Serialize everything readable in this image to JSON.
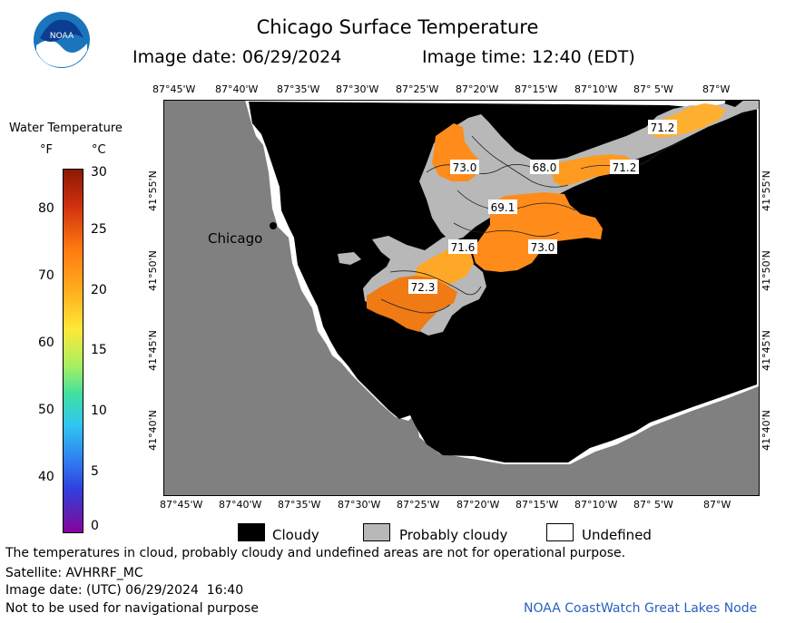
{
  "title": "Chicago Surface Temperature",
  "image_date_label": "Image date: 06/29/2024",
  "image_time_label": "Image time: 12:40 (EDT)",
  "logo_text": "NOAA",
  "colorbar": {
    "title": "Water Temperature",
    "unit_f": "°F",
    "unit_c": "°C",
    "f_ticks": [
      "80",
      "70",
      "60",
      "50",
      "40"
    ],
    "c_ticks": [
      "30",
      "25",
      "20",
      "15",
      "10",
      "5",
      "0"
    ]
  },
  "map": {
    "x_ticks": [
      "87°45'W",
      "87°40'W",
      "87°35'W",
      "87°30'W",
      "87°25'W",
      "87°20'W",
      "87°15'W",
      "87°10'W",
      "87° 5'W",
      "87°W"
    ],
    "y_ticks": [
      "41°55'N",
      "41°50'N",
      "41°45'N",
      "41°40'N"
    ],
    "city_label": "Chicago",
    "temp_labels": [
      "73.0",
      "68.0",
      "71.2",
      "71.2",
      "69.1",
      "71.6",
      "73.0",
      "72.3"
    ],
    "colors": {
      "land": "#808080",
      "cloud": "#000000",
      "probably_cloudy": "#b8b8b8",
      "warm": "#ff8c1a",
      "hot": "#f07010"
    }
  },
  "legend": {
    "cloudy": "Cloudy",
    "probably_cloudy": "Probably cloudy",
    "undefined": "Undefined"
  },
  "footer": {
    "note": "The temperatures in cloud, probably cloudy and undefined areas are not for operational purpose.",
    "satellite": "Satellite: AVHRRF_MC",
    "utc_date": "Image date: (UTC) 06/29/2024  16:40",
    "nav_warning": "Not to be used for navigational purpose",
    "credit": "NOAA CoastWatch Great Lakes Node"
  }
}
